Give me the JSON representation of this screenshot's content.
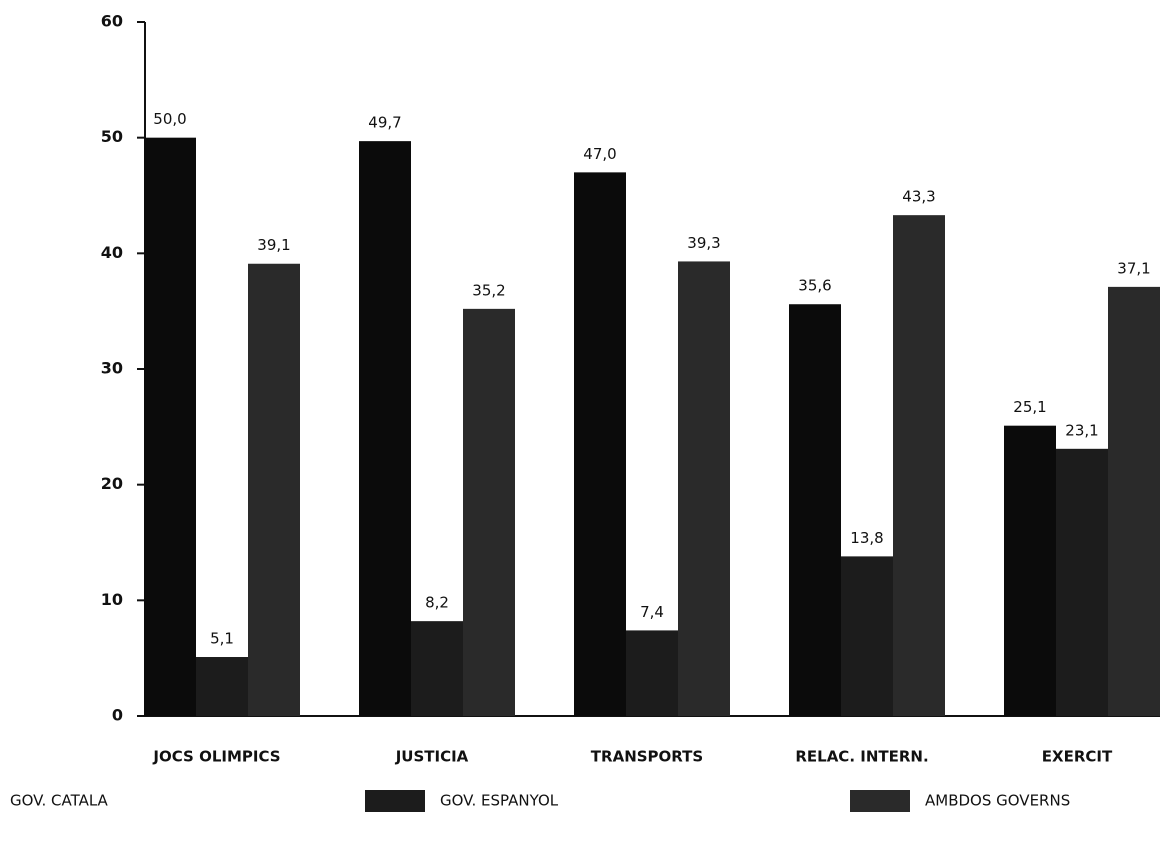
{
  "chart_data": {
    "type": "bar",
    "categories": [
      "JOCS OLIMPICS",
      "JUSTICIA",
      "TRANSPORTS",
      "RELAC. INTERN.",
      "EXERCIT"
    ],
    "series": [
      {
        "name": "GOV. CATALA",
        "color": "#0b0b0b",
        "values": [
          50.0,
          49.7,
          47.0,
          35.6,
          25.1
        ],
        "value_labels": [
          "50,0",
          "49,7",
          "47,0",
          "35,6",
          "25,1"
        ]
      },
      {
        "name": "GOV. ESPANYOL",
        "color": "#1c1c1c",
        "values": [
          5.1,
          8.2,
          7.4,
          13.8,
          23.1
        ],
        "value_labels": [
          "5,1",
          "8,2",
          "7,4",
          "13,8",
          "23,1"
        ]
      },
      {
        "name": "AMBDOS GOVERNS",
        "color": "#2a2a2a",
        "values": [
          39.1,
          35.2,
          39.3,
          43.3,
          37.1
        ],
        "value_labels": [
          "39,1",
          "35,2",
          "39,3",
          "43,3",
          "37,1"
        ]
      }
    ],
    "ylim": [
      0,
      60
    ],
    "yticks": [
      0,
      10,
      20,
      30,
      40,
      50,
      60
    ]
  }
}
